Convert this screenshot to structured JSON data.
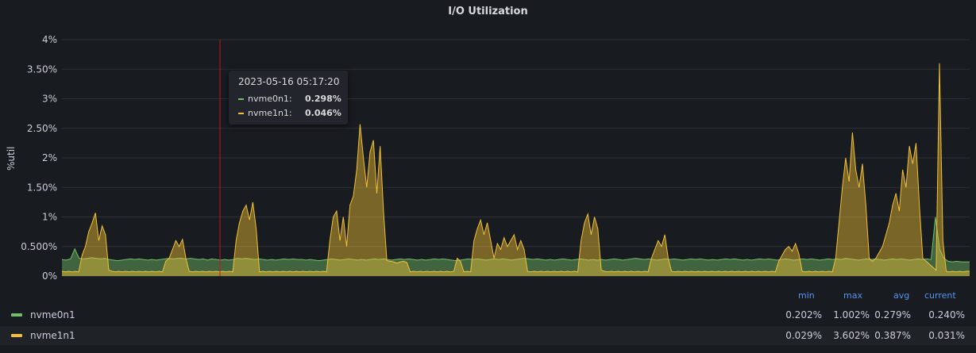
{
  "panel": {
    "title": "I/O Utilization"
  },
  "chart_data": {
    "type": "area",
    "title": "I/O Utilization",
    "ylabel": "%util",
    "ylim": [
      0,
      4
    ],
    "y_ticks": [
      {
        "value": 0,
        "label": "0%"
      },
      {
        "value": 0.5,
        "label": "0.500%"
      },
      {
        "value": 1,
        "label": "1%"
      },
      {
        "value": 1.5,
        "label": "1.50%"
      },
      {
        "value": 2,
        "label": "2%"
      },
      {
        "value": 2.5,
        "label": "2.50%"
      },
      {
        "value": 3,
        "label": "3%"
      },
      {
        "value": 3.5,
        "label": "3.50%"
      },
      {
        "value": 4,
        "label": "4%"
      }
    ],
    "grid": true,
    "legend_placement": "bottom",
    "series": [
      {
        "name": "nvme0n1",
        "color": "#73bf69",
        "stats": {
          "min": "0.202%",
          "max": "1.002%",
          "avg": "0.279%",
          "current": "0.240%"
        },
        "values": [
          0.28,
          0.27,
          0.29,
          0.46,
          0.3,
          0.29,
          0.3,
          0.31,
          0.3,
          0.29,
          0.3,
          0.28,
          0.27,
          0.26,
          0.27,
          0.28,
          0.29,
          0.28,
          0.29,
          0.28,
          0.27,
          0.28,
          0.27,
          0.28,
          0.29,
          0.3,
          0.29,
          0.3,
          0.3,
          0.29,
          0.3,
          0.29,
          0.28,
          0.29,
          0.27,
          0.29,
          0.28,
          0.27,
          0.28,
          0.27,
          0.28,
          0.3,
          0.29,
          0.3,
          0.29,
          0.28,
          0.29,
          0.28,
          0.27,
          0.28,
          0.27,
          0.28,
          0.29,
          0.28,
          0.29,
          0.28,
          0.28,
          0.27,
          0.28,
          0.27,
          0.26,
          0.27,
          0.28,
          0.29,
          0.28,
          0.27,
          0.28,
          0.29,
          0.28,
          0.27,
          0.28,
          0.27,
          0.28,
          0.29,
          0.28,
          0.29,
          0.28,
          0.27,
          0.28,
          0.29,
          0.28,
          0.29,
          0.28,
          0.27,
          0.28,
          0.27,
          0.28,
          0.29,
          0.28,
          0.29,
          0.28,
          0.27,
          0.26,
          0.27,
          0.28,
          0.29,
          0.28,
          0.29,
          0.28,
          0.27,
          0.28,
          0.29,
          0.28,
          0.29,
          0.28,
          0.27,
          0.28,
          0.29,
          0.3,
          0.29,
          0.28,
          0.29,
          0.28,
          0.27,
          0.28,
          0.27,
          0.28,
          0.29,
          0.28,
          0.27,
          0.28,
          0.29,
          0.28,
          0.27,
          0.28,
          0.27,
          0.28,
          0.27,
          0.28,
          0.29,
          0.28,
          0.27,
          0.28,
          0.29,
          0.3,
          0.29,
          0.28,
          0.29,
          0.28,
          0.27,
          0.28,
          0.29,
          0.28,
          0.29,
          0.28,
          0.27,
          0.28,
          0.29,
          0.28,
          0.29,
          0.28,
          0.27,
          0.28,
          0.27,
          0.28,
          0.29,
          0.28,
          0.29,
          0.28,
          0.27,
          0.28,
          0.27,
          0.28,
          0.29,
          0.28,
          0.29,
          0.28,
          0.27,
          0.28,
          0.29,
          0.28,
          0.27,
          0.28,
          0.29,
          0.28,
          0.29,
          0.28,
          0.27,
          0.28,
          0.29,
          0.28,
          0.29,
          0.28,
          0.3,
          0.29,
          0.28,
          0.27,
          0.28,
          0.29,
          0.28,
          0.29,
          0.28,
          0.27,
          0.28,
          0.29,
          0.28,
          0.29,
          0.28,
          0.27,
          0.28,
          0.29,
          0.28,
          0.29,
          0.28,
          1.0,
          0.45,
          0.3,
          0.25,
          0.24,
          0.25,
          0.24,
          0.24,
          0.24
        ]
      },
      {
        "name": "nvme1n1",
        "color": "#f2c036",
        "stats": {
          "min": "0.029%",
          "max": "3.602%",
          "avg": "0.387%",
          "current": "0.031%"
        },
        "values": [
          0.08,
          0.07,
          0.08,
          0.07,
          0.08,
          0.07,
          0.35,
          0.5,
          0.75,
          0.9,
          1.07,
          0.6,
          0.85,
          0.7,
          0.1,
          0.08,
          0.07,
          0.08,
          0.07,
          0.08,
          0.07,
          0.08,
          0.07,
          0.08,
          0.07,
          0.08,
          0.07,
          0.08,
          0.07,
          0.08,
          0.07,
          0.25,
          0.3,
          0.45,
          0.6,
          0.5,
          0.62,
          0.3,
          0.08,
          0.07,
          0.08,
          0.07,
          0.08,
          0.07,
          0.08,
          0.07,
          0.08,
          0.07,
          0.08,
          0.07,
          0.08,
          0.07,
          0.6,
          0.9,
          1.1,
          1.2,
          0.95,
          1.25,
          0.8,
          0.07,
          0.08,
          0.07,
          0.08,
          0.07,
          0.08,
          0.07,
          0.08,
          0.07,
          0.08,
          0.07,
          0.08,
          0.07,
          0.08,
          0.07,
          0.08,
          0.07,
          0.08,
          0.07,
          0.08,
          0.07,
          0.6,
          1.0,
          1.1,
          0.6,
          1.0,
          0.5,
          1.2,
          1.35,
          1.8,
          2.57,
          2.0,
          1.5,
          2.1,
          2.3,
          1.4,
          2.2,
          1.1,
          0.26,
          0.25,
          0.24,
          0.22,
          0.24,
          0.25,
          0.23,
          0.07,
          0.08,
          0.07,
          0.08,
          0.07,
          0.08,
          0.07,
          0.08,
          0.07,
          0.08,
          0.07,
          0.08,
          0.07,
          0.08,
          0.3,
          0.25,
          0.07,
          0.08,
          0.07,
          0.6,
          0.8,
          0.95,
          0.7,
          0.9,
          0.6,
          0.3,
          0.55,
          0.45,
          0.65,
          0.5,
          0.6,
          0.7,
          0.45,
          0.6,
          0.45,
          0.08,
          0.07,
          0.08,
          0.07,
          0.08,
          0.07,
          0.08,
          0.07,
          0.08,
          0.07,
          0.08,
          0.07,
          0.08,
          0.07,
          0.08,
          0.07,
          0.6,
          0.9,
          1.05,
          0.7,
          1.0,
          0.8,
          0.1,
          0.08,
          0.07,
          0.08,
          0.07,
          0.08,
          0.07,
          0.08,
          0.07,
          0.08,
          0.07,
          0.08,
          0.07,
          0.08,
          0.07,
          0.3,
          0.45,
          0.6,
          0.5,
          0.7,
          0.3,
          0.08,
          0.07,
          0.08,
          0.07,
          0.08,
          0.07,
          0.08,
          0.07,
          0.08,
          0.07,
          0.08,
          0.07,
          0.08,
          0.07,
          0.08,
          0.07,
          0.08,
          0.07,
          0.08,
          0.07,
          0.08,
          0.07,
          0.08,
          0.07,
          0.08,
          0.07,
          0.08,
          0.07,
          0.08,
          0.07,
          0.08,
          0.07,
          0.25,
          0.35,
          0.45,
          0.5,
          0.42,
          0.55,
          0.38,
          0.08,
          0.07,
          0.08,
          0.07,
          0.08,
          0.07,
          0.08,
          0.07,
          0.08,
          0.07,
          0.3,
          0.9,
          1.5,
          2.0,
          1.6,
          2.43,
          1.8,
          1.5,
          1.9,
          1.2,
          0.3,
          0.25,
          0.3,
          0.4,
          0.5,
          0.7,
          0.9,
          1.2,
          1.4,
          1.1,
          1.8,
          1.5,
          2.2,
          1.9,
          2.25,
          1.2,
          0.3,
          0.25,
          0.2,
          0.15,
          0.1,
          3.6,
          0.6,
          0.08,
          0.07,
          0.08,
          0.07,
          0.08,
          0.07,
          0.08,
          0.08
        ]
      }
    ]
  },
  "tooltip": {
    "time": "2023-05-16 05:17:20",
    "rows": [
      {
        "name": "nvme0n1:",
        "value": "0.298%",
        "color": "#73bf69"
      },
      {
        "name": "nvme1n1:",
        "value": "0.046%",
        "color": "#f2c036"
      }
    ]
  },
  "legend": {
    "headers": [
      "min",
      "max",
      "avg",
      "current"
    ],
    "rows": [
      {
        "name": "nvme0n1",
        "color": "#73bf69",
        "min": "0.202%",
        "max": "1.002%",
        "avg": "0.279%",
        "current": "0.240%"
      },
      {
        "name": "nvme1n1",
        "color": "#f2c036",
        "min": "0.029%",
        "max": "3.602%",
        "avg": "0.387%",
        "current": "0.031%"
      }
    ]
  }
}
